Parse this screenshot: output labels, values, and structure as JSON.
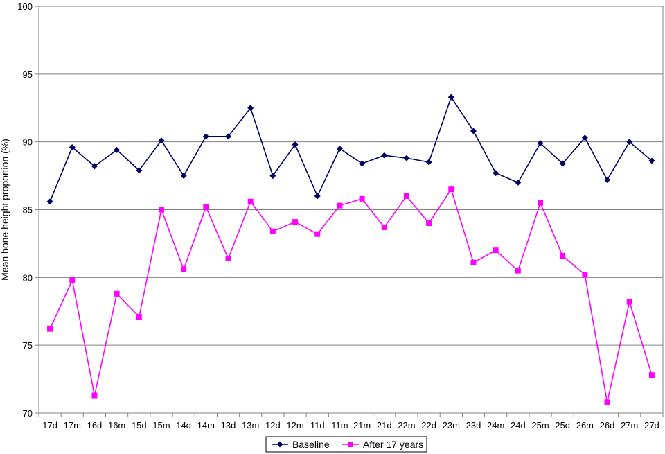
{
  "chart_data": {
    "type": "line",
    "title": "",
    "xlabel": "",
    "ylabel": "Mean bone height proportion (%)",
    "ylim": [
      70,
      100
    ],
    "yticks": [
      70,
      75,
      80,
      85,
      90,
      95,
      100
    ],
    "grid": "horizontal",
    "legend_position": "bottom",
    "categories": [
      "17d",
      "17m",
      "16d",
      "16m",
      "15d",
      "15m",
      "14d",
      "14m",
      "13d",
      "13m",
      "12d",
      "12m",
      "11d",
      "11m",
      "21m",
      "21d",
      "22m",
      "22d",
      "23m",
      "23d",
      "24m",
      "24d",
      "25m",
      "25d",
      "26m",
      "26d",
      "27m",
      "27d"
    ],
    "series": [
      {
        "name": "Baseline",
        "color": "#000066",
        "marker": "diamond",
        "values": [
          85.6,
          89.6,
          88.2,
          89.4,
          87.9,
          90.1,
          87.5,
          90.4,
          90.4,
          92.5,
          87.5,
          89.8,
          86.0,
          89.5,
          88.4,
          89.0,
          88.8,
          88.5,
          93.3,
          90.8,
          87.7,
          87.0,
          89.9,
          88.4,
          90.3,
          87.2,
          90.0,
          88.6
        ]
      },
      {
        "name": "After 17 years",
        "color": "#ff00ff",
        "marker": "square",
        "values": [
          76.2,
          79.8,
          71.3,
          78.8,
          77.1,
          85.0,
          80.6,
          85.2,
          81.4,
          85.6,
          83.4,
          84.1,
          83.2,
          85.3,
          85.8,
          83.7,
          86.0,
          84.0,
          86.5,
          81.1,
          82.0,
          80.5,
          85.5,
          81.6,
          80.2,
          70.8,
          78.2,
          72.8
        ]
      }
    ]
  }
}
